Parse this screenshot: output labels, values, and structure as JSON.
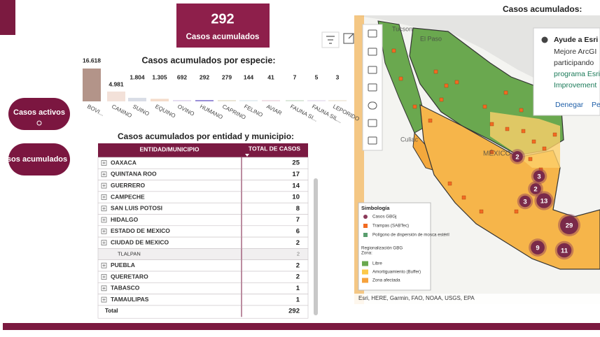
{
  "kpi": {
    "value": 292,
    "label": "Casos acumulados"
  },
  "buttons": [
    "Casos activos",
    "Casos acumulados"
  ],
  "chart_data": {
    "type": "bar",
    "title": "Casos acumulados por especie:",
    "categories": [
      "BOVI...",
      "CANINO",
      "SUINO",
      "EQUINO",
      "OVINO",
      "HUMANO",
      "CAPRINO",
      "FELINO",
      "AVIAR",
      "FAUNA SI...",
      "FAUNA SIL...",
      "LEPORIDO"
    ],
    "values": [
      16618,
      4981,
      1804,
      1305,
      692,
      292,
      279,
      144,
      41,
      7,
      5,
      3
    ],
    "value_labels": [
      "16.618",
      "4.981",
      "1.804",
      "1.305",
      "692",
      "292",
      "279",
      "144",
      "41",
      "7",
      "5",
      "3"
    ],
    "colors": [
      "#b39489",
      "#f3e1d9",
      "#d9dde6",
      "#f5dccb",
      "#e4dcf0",
      "#9a8fd8",
      "#e9e4d6",
      "#e6eef2",
      "#f0e0e6",
      "#dde8dc",
      "#ece6f2",
      "#f2ece2"
    ]
  },
  "table": {
    "title": "Casos acumulados por entidad y municipio:",
    "columns": [
      "ENTIDAD/MUNICIPIO",
      "TOTAL DE CASOS"
    ],
    "rows": [
      {
        "name": "OAXACA",
        "total": 25
      },
      {
        "name": "QUINTANA ROO",
        "total": 17
      },
      {
        "name": "GUERRERO",
        "total": 14
      },
      {
        "name": "CAMPECHE",
        "total": 10
      },
      {
        "name": "SAN LUIS POTOSI",
        "total": 8
      },
      {
        "name": "HIDALGO",
        "total": 7
      },
      {
        "name": "ESTADO DE MEXICO",
        "total": 6
      },
      {
        "name": "CIUDAD DE MEXICO",
        "total": 2,
        "children": [
          {
            "name": "TLALPAN",
            "total": 2
          }
        ]
      },
      {
        "name": "PUEBLA",
        "total": 2
      },
      {
        "name": "QUERETARO",
        "total": 2
      },
      {
        "name": "TABASCO",
        "total": 1
      },
      {
        "name": "TAMAULIPAS",
        "total": 1
      }
    ],
    "total": {
      "label": "Total",
      "value": 292
    }
  },
  "map": {
    "title": "Casos acumulados:",
    "places": [
      "Tucson",
      "El Paso",
      "Culiac",
      "MÉXICO"
    ],
    "clusters": [
      2,
      3,
      2,
      3,
      13,
      29,
      9,
      11
    ],
    "legend": {
      "title": "Simbología",
      "items": [
        "Casos GBGj",
        "Trampas (SABTec)",
        "Polígono de dispersión de mosca estéril"
      ],
      "section": "Regionalización GBG",
      "subsection": "Zona:",
      "zones": [
        "Libre",
        "Amortiguamiento (Buffer)",
        "Zona afectada"
      ]
    },
    "attribution": "Esri, HERE, Garmin, FAO, NOAA, USGS, EPA",
    "popup": {
      "title": "Ayude a Esri",
      "lines": [
        "Mejore ArcGI",
        "participando"
      ],
      "link_lines": [
        "programa Esri",
        "Improvement"
      ],
      "actions": [
        "Denegar",
        "Pe"
      ]
    }
  }
}
